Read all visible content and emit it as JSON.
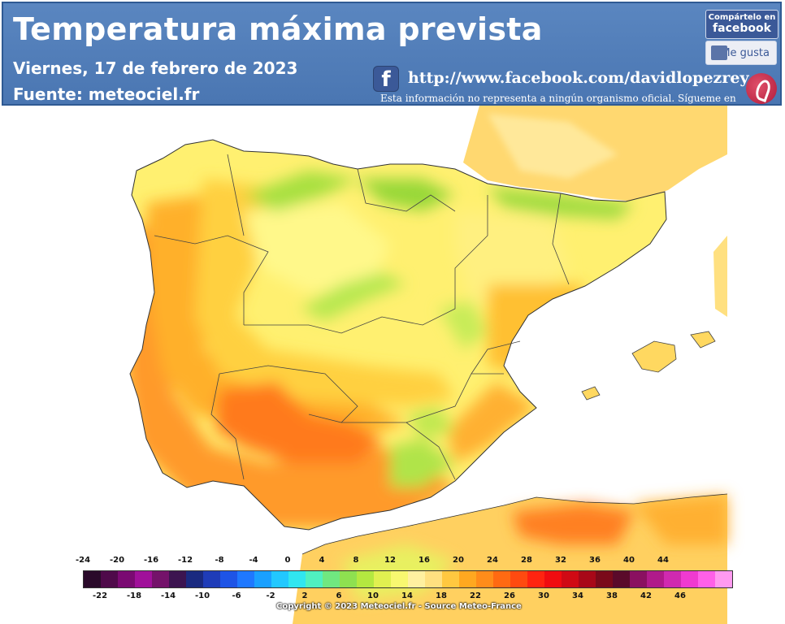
{
  "header": {
    "title": "Temperatura máxima prevista",
    "date": "Viernes, 17 de febrero de 2023",
    "source": "Fuente:  meteociel.fr",
    "fb_glyph": "f",
    "url": "http://www.facebook.com/davidlopezrey",
    "disclaimer": "Esta información no representa a ningún organismo oficial. Sígueme en",
    "share_line1": "Compártelo en",
    "share_line2": "facebook",
    "like_label": "Me gusta"
  },
  "legend": {
    "top_labels": [
      "-24",
      "-20",
      "-16",
      "-12",
      "-8",
      "-4",
      "0",
      "4",
      "8",
      "12",
      "16",
      "20",
      "24",
      "28",
      "32",
      "36",
      "40",
      "44"
    ],
    "bottom_labels": [
      "-22",
      "-18",
      "-14",
      "-10",
      "-6",
      "-2",
      "2",
      "6",
      "10",
      "14",
      "18",
      "22",
      "26",
      "30",
      "34",
      "38",
      "42",
      "46"
    ],
    "colors": [
      "#2a0a2a",
      "#4f0a4a",
      "#7a0a72",
      "#a0109a",
      "#74126a",
      "#3c1450",
      "#1a2a80",
      "#1f3cb8",
      "#1e54e6",
      "#1f78ff",
      "#1aa0ff",
      "#22c8ff",
      "#30e6f0",
      "#50f0c0",
      "#70e880",
      "#8ee050",
      "#b4e840",
      "#e0f050",
      "#f8f870",
      "#fff0a0",
      "#ffe080",
      "#ffc840",
      "#ffa820",
      "#ff8c1a",
      "#ff6a12",
      "#ff4a10",
      "#ff2410",
      "#f00c10",
      "#d00a14",
      "#a80818",
      "#7a0a1a",
      "#5a0a2a",
      "#8a1060",
      "#b01a8a",
      "#d02ab0",
      "#f03ad0",
      "#ff60e8",
      "#ff9af0"
    ]
  },
  "copyright": "Copyright © 2023 Meteociel.fr - Source Meteo-France",
  "colors": {
    "header_bg": "#4a76b2",
    "facebook": "#3b5998"
  }
}
